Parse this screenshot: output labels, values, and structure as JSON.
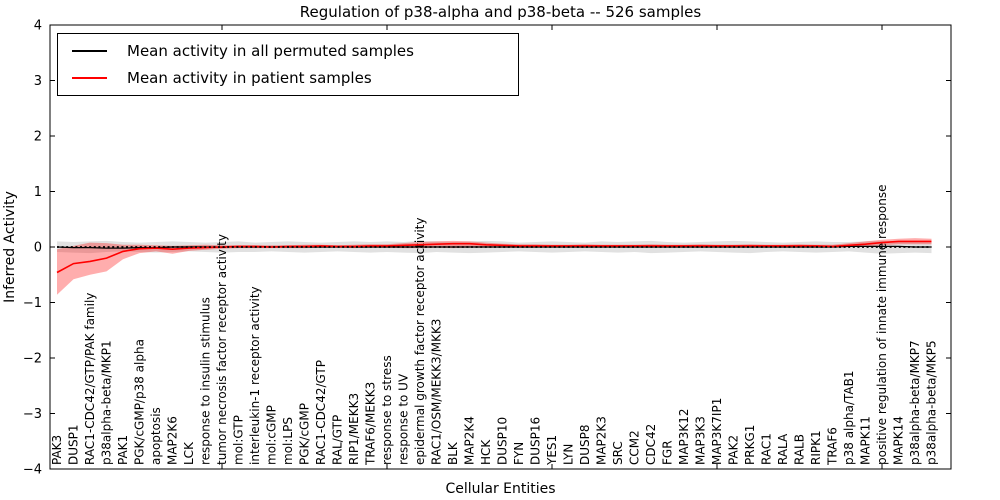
{
  "title": "Regulation of p38-alpha and p38-beta -- 526 samples",
  "axes": {
    "xlabel": "Cellular Entities",
    "ylabel": "Inferred Activity",
    "ytick_labels": [
      "4",
      "3",
      "2",
      "1",
      "0",
      "−1",
      "−2",
      "−3",
      "−4"
    ]
  },
  "legend": {
    "entries": [
      {
        "label": "Mean activity in all permuted samples",
        "color": "#000000"
      },
      {
        "label": "Mean activity in patient samples",
        "color": "#ff0000"
      }
    ]
  },
  "colors": {
    "patient_line": "#ff0000",
    "permuted_line": "#000000",
    "patient_band": "#ff9999",
    "permuted_band": "#dddddd",
    "frame": "#000000",
    "background": "#ffffff"
  },
  "chart_data": {
    "type": "line",
    "title": "Regulation of p38-alpha and p38-beta -- 526 samples",
    "xlabel": "Cellular Entities",
    "ylabel": "Inferred Activity",
    "ylim": [
      -4,
      4
    ],
    "yticks": [
      4,
      3,
      2,
      1,
      0,
      -1,
      -2,
      -3,
      -4
    ],
    "xtick_marks_at": [
      10,
      20,
      30,
      40,
      50
    ],
    "grid": false,
    "legend_position": "upper left",
    "zero_reference_line": "dotted black at y=0",
    "categories": [
      "PAK3",
      "DUSP1",
      "RAC1-CDC42/GTP/PAK family",
      "p38alpha-beta/MKP1",
      "PAK1",
      "PGK/cGMP/p38 alpha",
      "apoptosis",
      "MAP2K6",
      "LCK",
      "response to insulin stimulus",
      "tumor necrosis factor receptor activity",
      "mol:GTP",
      "interleukin-1 receptor activity",
      "mol:cGMP",
      "mol:LPS",
      "PGK/cGMP",
      "RAC1-CDC42/GTP",
      "RAL/GTP",
      "RIP1/MEKK3",
      "TRAF6/MEKK3",
      "response to stress",
      "response to UV",
      "epidermal growth factor receptor activity",
      "RAC1/OSM/MEKK3/MKK3",
      "BLK",
      "MAP2K4",
      "HCK",
      "DUSP10",
      "FYN",
      "DUSP16",
      "YES1",
      "LYN",
      "DUSP8",
      "MAP2K3",
      "SRC",
      "CCM2",
      "CDC42",
      "FGR",
      "MAP3K12",
      "MAP3K3",
      "MAP3K7IP1",
      "PAK2",
      "PRKG1",
      "RAC1",
      "RALA",
      "RALB",
      "RIPK1",
      "TRAF6",
      "p38 alpha/TAB1",
      "MAPK11",
      "positive regulation of innate immune response",
      "MAPK14",
      "p38alpha-beta/MKP7",
      "p38alpha-beta/MKP5"
    ],
    "series": [
      {
        "name": "Mean activity in all permuted samples",
        "color": "#000000",
        "band_color": "#aaaaaa",
        "band_opacity": 0.35,
        "values": [
          0.0,
          -0.01,
          -0.01,
          -0.02,
          -0.02,
          -0.01,
          -0.01,
          0.0,
          0.0,
          0.0,
          0.0,
          0.0,
          0.0,
          0.0,
          0.0,
          0.0,
          0.0,
          0.0,
          0.0,
          0.0,
          0.0,
          0.0,
          0.0,
          0.0,
          0.0,
          0.0,
          0.0,
          0.0,
          0.0,
          0.0,
          0.0,
          0.0,
          0.0,
          0.0,
          0.0,
          0.0,
          0.0,
          0.0,
          0.0,
          0.0,
          0.0,
          0.0,
          0.0,
          0.0,
          0.0,
          0.0,
          0.0,
          0.0,
          0.01,
          0.01,
          0.01,
          0.01,
          0.0,
          0.0
        ],
        "band_upper": [
          0.1,
          0.09,
          0.1,
          0.11,
          0.09,
          0.08,
          0.09,
          0.1,
          0.09,
          0.08,
          0.09,
          0.1,
          0.08,
          0.09,
          0.1,
          0.09,
          0.08,
          0.09,
          0.1,
          0.09,
          0.1,
          0.09,
          0.11,
          0.1,
          0.09,
          0.1,
          0.11,
          0.1,
          0.08,
          0.09,
          0.1,
          0.09,
          0.08,
          0.1,
          0.09,
          0.1,
          0.11,
          0.09,
          0.08,
          0.09,
          0.1,
          0.11,
          0.1,
          0.09,
          0.08,
          0.09,
          0.1,
          0.09,
          0.09,
          0.1,
          0.11,
          0.1,
          0.09,
          0.1
        ],
        "band_lower": [
          -0.09,
          -0.1,
          -0.11,
          -0.09,
          -0.08,
          -0.09,
          -0.1,
          -0.09,
          -0.08,
          -0.09,
          -0.1,
          -0.09,
          -0.09,
          -0.08,
          -0.09,
          -0.1,
          -0.09,
          -0.08,
          -0.09,
          -0.1,
          -0.09,
          -0.1,
          -0.11,
          -0.09,
          -0.1,
          -0.11,
          -0.1,
          -0.09,
          -0.08,
          -0.09,
          -0.1,
          -0.09,
          -0.08,
          -0.09,
          -0.1,
          -0.09,
          -0.11,
          -0.1,
          -0.09,
          -0.08,
          -0.09,
          -0.1,
          -0.11,
          -0.09,
          -0.08,
          -0.09,
          -0.1,
          -0.09,
          -0.08,
          -0.1,
          -0.12,
          -0.11,
          -0.1,
          -0.11
        ]
      },
      {
        "name": "Mean activity in patient samples",
        "color": "#ff0000",
        "band_color": "#ff0000",
        "band_opacity": 0.32,
        "values": [
          -0.46,
          -0.3,
          -0.26,
          -0.2,
          -0.08,
          -0.03,
          -0.02,
          -0.04,
          -0.02,
          -0.01,
          0.0,
          0.01,
          0.01,
          0.0,
          0.01,
          0.01,
          0.02,
          0.01,
          0.01,
          0.02,
          0.02,
          0.03,
          0.04,
          0.05,
          0.06,
          0.06,
          0.04,
          0.03,
          0.02,
          0.02,
          0.02,
          0.02,
          0.02,
          0.02,
          0.02,
          0.02,
          0.02,
          0.02,
          0.02,
          0.02,
          0.02,
          0.02,
          0.02,
          0.02,
          0.02,
          0.02,
          0.02,
          0.01,
          0.03,
          0.05,
          0.08,
          0.1,
          0.1,
          0.1
        ],
        "band_upper": [
          -0.04,
          0.02,
          0.08,
          0.07,
          0.04,
          0.04,
          0.03,
          0.02,
          0.03,
          0.04,
          0.03,
          0.03,
          0.03,
          0.03,
          0.03,
          0.04,
          0.04,
          0.03,
          0.04,
          0.05,
          0.05,
          0.07,
          0.09,
          0.1,
          0.11,
          0.1,
          0.08,
          0.06,
          0.05,
          0.05,
          0.04,
          0.04,
          0.05,
          0.04,
          0.04,
          0.04,
          0.05,
          0.04,
          0.04,
          0.05,
          0.04,
          0.04,
          0.05,
          0.04,
          0.04,
          0.05,
          0.04,
          0.04,
          0.07,
          0.1,
          0.13,
          0.15,
          0.16,
          0.15
        ],
        "band_lower": [
          -0.86,
          -0.58,
          -0.5,
          -0.44,
          -0.22,
          -0.11,
          -0.08,
          -0.12,
          -0.07,
          -0.05,
          -0.03,
          -0.02,
          -0.02,
          -0.02,
          -0.02,
          -0.02,
          -0.01,
          -0.01,
          -0.02,
          -0.01,
          -0.01,
          -0.02,
          -0.02,
          -0.01,
          -0.02,
          -0.01,
          -0.01,
          -0.01,
          -0.01,
          -0.01,
          0.0,
          0.0,
          0.0,
          0.0,
          0.0,
          0.0,
          0.0,
          0.0,
          0.0,
          0.0,
          0.0,
          0.0,
          0.0,
          0.0,
          0.0,
          0.0,
          0.0,
          -0.01,
          0.0,
          0.01,
          0.03,
          0.05,
          0.05,
          0.05
        ]
      }
    ]
  }
}
